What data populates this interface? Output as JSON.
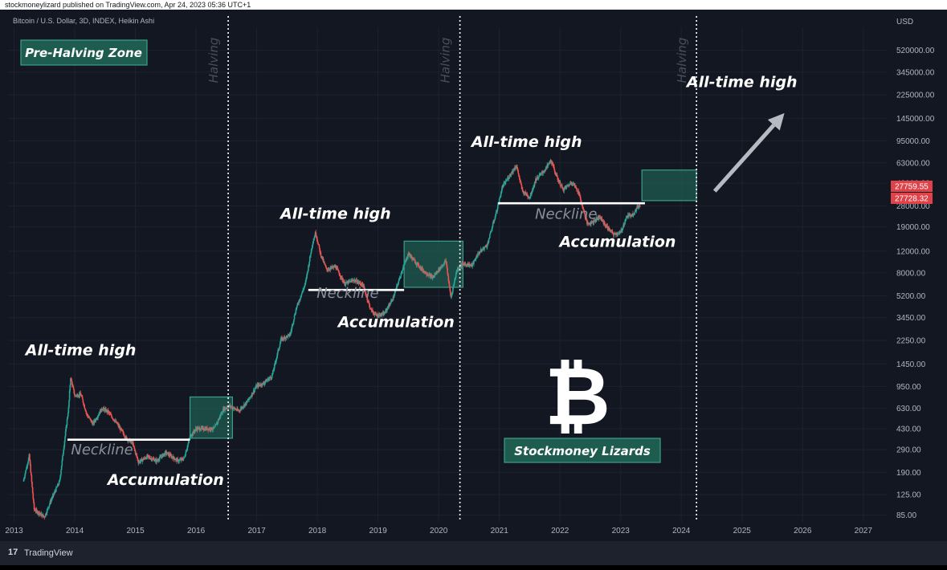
{
  "header": {
    "published": "stockmoneylizard published on TradingView.com, Apr 24, 2023 05:36 UTC+1",
    "symbol": "Bitcoin / U.S. Dollar, 3D, INDEX, Heikin Ashi"
  },
  "footer": {
    "brand": "TradingView",
    "logo": "17"
  },
  "chart_data": {
    "type": "line",
    "style": "heikin-ashi candles",
    "ylabel": "USD",
    "yscale": "log",
    "ylim": [
      75,
      800000
    ],
    "xlim": [
      2012.9,
      2027.4
    ],
    "x_ticks": [
      "2013",
      "2014",
      "2015",
      "2016",
      "2017",
      "2018",
      "2019",
      "2020",
      "2021",
      "2022",
      "2023",
      "2024",
      "2025",
      "2026",
      "2027"
    ],
    "y_ticks": [
      85,
      125,
      190,
      290,
      430,
      630,
      950,
      1450,
      2250,
      3450,
      5200,
      8000,
      12000,
      19000,
      28000,
      43000,
      63000,
      95000,
      145000,
      225000,
      345000,
      520000
    ],
    "y_tick_labels": [
      "85.00",
      "125.00",
      "190.00",
      "290.00",
      "430.00",
      "630.00",
      "950.00",
      "1450.00",
      "2250.00",
      "3450.00",
      "5200.00",
      "8000.00",
      "12000.00",
      "19000.00",
      "28000.00",
      "43000.00",
      "63000.00",
      "95000.00",
      "145000.00",
      "225000.00",
      "345000.00",
      "520000.00"
    ],
    "price_labels": [
      {
        "label": "27759.55",
        "value": 27759.55,
        "color": "#e0424a"
      },
      {
        "label": "27728.32",
        "value": 27728.32,
        "color": "#e0424a"
      }
    ],
    "series": [
      {
        "values": [
          [
            2013.15,
            160
          ],
          [
            2013.25,
            260
          ],
          [
            2013.33,
            95
          ],
          [
            2013.5,
            82
          ],
          [
            2013.6,
            110
          ],
          [
            2013.75,
            160
          ],
          [
            2013.9,
            650
          ],
          [
            2013.93,
            1130
          ],
          [
            2014.0,
            800
          ],
          [
            2014.1,
            820
          ],
          [
            2014.2,
            560
          ],
          [
            2014.3,
            470
          ],
          [
            2014.45,
            630
          ],
          [
            2014.55,
            590
          ],
          [
            2014.7,
            470
          ],
          [
            2014.85,
            360
          ],
          [
            2014.95,
            330
          ],
          [
            2015.05,
            230
          ],
          [
            2015.2,
            255
          ],
          [
            2015.35,
            235
          ],
          [
            2015.5,
            275
          ],
          [
            2015.6,
            255
          ],
          [
            2015.7,
            235
          ],
          [
            2015.8,
            245
          ],
          [
            2015.9,
            370
          ],
          [
            2016.0,
            430
          ],
          [
            2016.3,
            430
          ],
          [
            2016.45,
            620
          ],
          [
            2016.55,
            660
          ],
          [
            2016.7,
            600
          ],
          [
            2016.85,
            720
          ],
          [
            2017.0,
            960
          ],
          [
            2017.1,
            1000
          ],
          [
            2017.25,
            1150
          ],
          [
            2017.4,
            2300
          ],
          [
            2017.55,
            2500
          ],
          [
            2017.65,
            4100
          ],
          [
            2017.8,
            6500
          ],
          [
            2017.92,
            14000
          ],
          [
            2017.97,
            17000
          ],
          [
            2018.05,
            11500
          ],
          [
            2018.15,
            8500
          ],
          [
            2018.3,
            9000
          ],
          [
            2018.45,
            6500
          ],
          [
            2018.6,
            7000
          ],
          [
            2018.75,
            6400
          ],
          [
            2018.88,
            4000
          ],
          [
            2018.97,
            3600
          ],
          [
            2019.1,
            3700
          ],
          [
            2019.25,
            5000
          ],
          [
            2019.4,
            8500
          ],
          [
            2019.5,
            11500
          ],
          [
            2019.6,
            10000
          ],
          [
            2019.75,
            8300
          ],
          [
            2019.9,
            7300
          ],
          [
            2020.0,
            8500
          ],
          [
            2020.12,
            10000
          ],
          [
            2020.2,
            5000
          ],
          [
            2020.3,
            8500
          ],
          [
            2020.4,
            9500
          ],
          [
            2020.55,
            9200
          ],
          [
            2020.65,
            11500
          ],
          [
            2020.8,
            13500
          ],
          [
            2020.95,
            25000
          ],
          [
            2021.05,
            40000
          ],
          [
            2021.15,
            48000
          ],
          [
            2021.28,
            60000
          ],
          [
            2021.38,
            37000
          ],
          [
            2021.5,
            33000
          ],
          [
            2021.6,
            46000
          ],
          [
            2021.75,
            55000
          ],
          [
            2021.85,
            66000
          ],
          [
            2021.95,
            48000
          ],
          [
            2022.05,
            38000
          ],
          [
            2022.2,
            44000
          ],
          [
            2022.3,
            37000
          ],
          [
            2022.45,
            20000
          ],
          [
            2022.55,
            21000
          ],
          [
            2022.65,
            23000
          ],
          [
            2022.75,
            19500
          ],
          [
            2022.88,
            16500
          ],
          [
            2023.0,
            17000
          ],
          [
            2023.1,
            23000
          ],
          [
            2023.2,
            24000
          ],
          [
            2023.3,
            28500
          ],
          [
            2023.32,
            27700
          ]
        ]
      }
    ],
    "halving_lines": [
      2016.53,
      2020.35,
      2024.25
    ],
    "halving_label": "Halving",
    "annotations": [
      {
        "text": "All-time high",
        "x": 2014.1,
        "y": 1700,
        "kind": "title"
      },
      {
        "text": "All-time high",
        "x": 2018.3,
        "y": 22000,
        "kind": "title"
      },
      {
        "text": "All-time high",
        "x": 2021.45,
        "y": 85000,
        "kind": "title"
      },
      {
        "text": "All-time high",
        "x": 2025.0,
        "y": 260000,
        "kind": "title"
      },
      {
        "text": "Neckline",
        "x": 2014.45,
        "y": 265,
        "kind": "neckline"
      },
      {
        "text": "Neckline",
        "x": 2018.5,
        "y": 5000,
        "kind": "neckline"
      },
      {
        "text": "Neckline",
        "x": 2022.1,
        "y": 22000,
        "kind": "neckline"
      },
      {
        "text": "Accumulation",
        "x": 2015.5,
        "y": 150,
        "kind": "title"
      },
      {
        "text": "Accumulation",
        "x": 2019.3,
        "y": 2900,
        "kind": "title"
      },
      {
        "text": "Accumulation",
        "x": 2022.95,
        "y": 13000,
        "kind": "title"
      }
    ],
    "neckline_levels": [
      {
        "x0": 2013.88,
        "x1": 2015.9,
        "y": 350
      },
      {
        "x0": 2017.85,
        "x1": 2019.43,
        "y": 5800
      },
      {
        "x0": 2020.98,
        "x1": 2023.4,
        "y": 29500
      }
    ],
    "zones": [
      {
        "x0": 2015.9,
        "x1": 2016.6,
        "y0": 360,
        "y1": 780
      },
      {
        "x0": 2019.43,
        "x1": 2020.4,
        "y0": 6100,
        "y1": 14500
      },
      {
        "x0": 2023.35,
        "x1": 2024.25,
        "y0": 31000,
        "y1": 55000
      }
    ],
    "arrow": {
      "x0": 2024.55,
      "y0": 37000,
      "x1": 2025.7,
      "y1": 160000
    },
    "labels": {
      "pre_halving_zone": "Pre-Halving Zone",
      "watermark": "Stockmoney Lizards",
      "logo_glyph": "₿"
    },
    "colors": {
      "background": "#131722",
      "up": "#26a69a",
      "down": "#ef5350",
      "zone_fill": "#1f5c50",
      "zone_stroke": "#3d9e88",
      "neckline": "#ffffff"
    },
    "grid": true
  }
}
